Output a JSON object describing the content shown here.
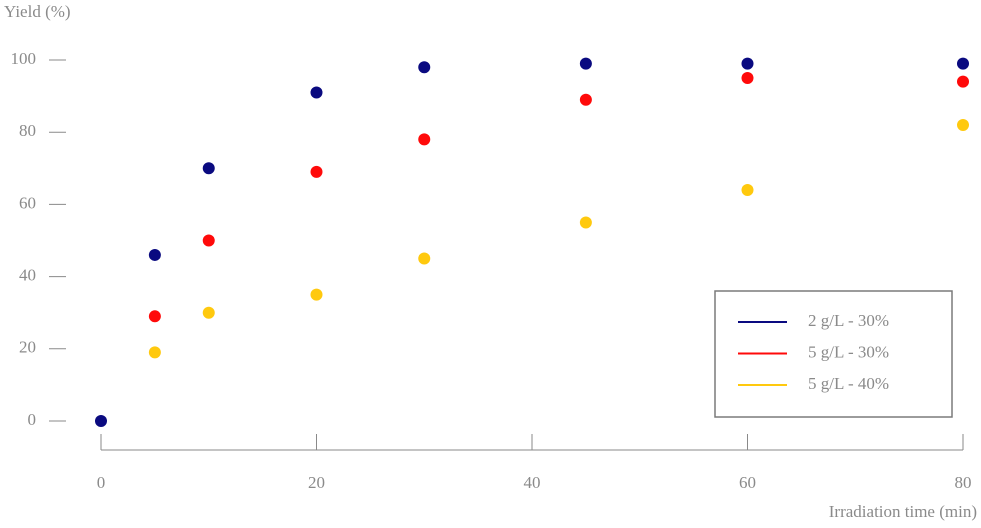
{
  "chart_data": {
    "type": "scatter",
    "x_label": "Irradiation time (min)",
    "y_label": "Yield (%)",
    "series": [
      {
        "name": "2 g/L - 30%",
        "color": "#0a0a80",
        "x": [
          0,
          5,
          10,
          20,
          30,
          45,
          60,
          80
        ],
        "values": [
          0,
          46,
          70,
          91,
          98,
          99,
          99,
          99
        ]
      },
      {
        "name": "5 g/L - 30%",
        "color": "#ff0a0a",
        "x": [
          5,
          10,
          20,
          30,
          45,
          60,
          80
        ],
        "values": [
          29,
          50,
          69,
          78,
          89,
          95,
          94
        ]
      },
      {
        "name": "5 g/L - 40%",
        "color": "#ffc90e",
        "x": [
          5,
          10,
          20,
          30,
          45,
          60,
          80
        ],
        "values": [
          19,
          30,
          35,
          45,
          55,
          64,
          82
        ]
      }
    ],
    "xlim": [
      0,
      80
    ],
    "xticks": [
      0,
      20,
      40,
      60,
      80
    ],
    "ylim": [
      0,
      100
    ],
    "yticks": [
      0,
      20,
      40,
      60,
      80,
      100
    ],
    "legend": "lower right"
  }
}
